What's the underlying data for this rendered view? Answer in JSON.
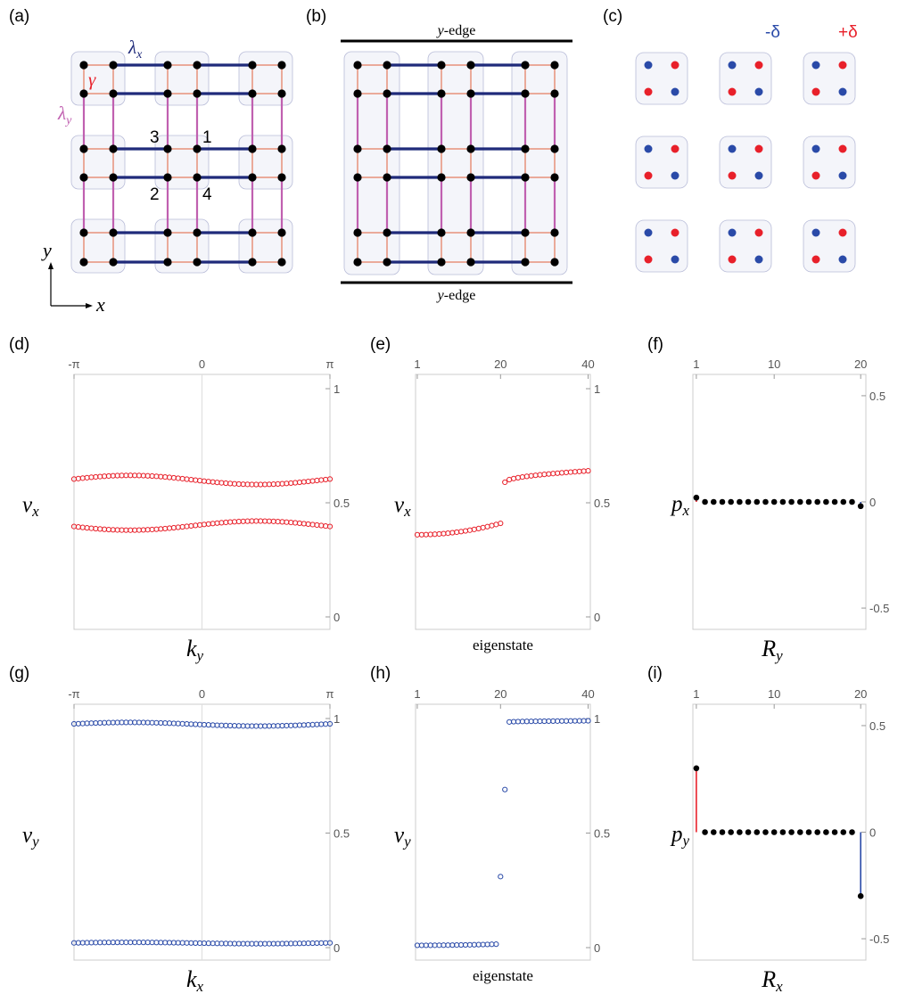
{
  "labels": {
    "a": "(a)",
    "b": "(b)",
    "c": "(c)",
    "d": "(d)",
    "e": "(e)",
    "f": "(f)",
    "g": "(g)",
    "h": "(h)",
    "i": "(i)"
  },
  "panel_a": {
    "lambda_x": "λ",
    "lambda_x_sub": "x",
    "lambda_y": "λ",
    "lambda_y_sub": "y",
    "gamma": "γ",
    "site_labels": [
      "3",
      "1",
      "2",
      "4"
    ],
    "axis_x": "x",
    "axis_y": "y"
  },
  "panel_b": {
    "top_edge": "y",
    "top_edge_rest": "-edge",
    "bottom_edge": "y",
    "bottom_edge_rest": "-edge"
  },
  "panel_c": {
    "minus_label": "-δ",
    "plus_label": "+δ"
  },
  "colors": {
    "lambda_x": "#1f2a7a",
    "lambda_y": "#c060b0",
    "gamma": "#e0603a",
    "red": "#e8202a",
    "blue": "#2a4aa8",
    "cell_fill": "#f4f5fa",
    "cell_border": "#b8bcd8"
  },
  "chart_data": [
    {
      "id": "d",
      "type": "scatter",
      "marker": "open-circle",
      "color": "red",
      "top_ticks": [
        "-π",
        "0",
        "π"
      ],
      "right_ticks": [
        "1",
        "0.5",
        "0"
      ],
      "ylim": [
        0,
        1
      ],
      "ylabel": "v",
      "ylabel_sub": "x",
      "xlabel": "k",
      "xlabel_sub": "y",
      "series": [
        {
          "x_range": [
            -3.1416,
            3.1416
          ],
          "n": 60,
          "baseline": 0.6,
          "wave": [
            0.02,
            0.0,
            0.03
          ]
        },
        {
          "x_range": [
            -3.1416,
            3.1416
          ],
          "n": 60,
          "baseline": 0.4,
          "wave": [
            -0.02,
            0.0,
            -0.02
          ]
        }
      ]
    },
    {
      "id": "e",
      "type": "scatter",
      "marker": "open-circle",
      "color": "red",
      "top_ticks": [
        "1",
        "20",
        "40"
      ],
      "right_ticks": [
        "1",
        "0.5",
        "0"
      ],
      "ylim": [
        0,
        1
      ],
      "ylabel": "v",
      "ylabel_sub": "x",
      "xlabel": "eigenstate",
      "lower": {
        "x_from": 1,
        "x_to": 20,
        "y_from": 0.36,
        "y_to": 0.41
      },
      "upper": {
        "x_from": 21,
        "x_to": 40,
        "y_from": 0.59,
        "y_to": 0.64
      }
    },
    {
      "id": "f",
      "type": "stem",
      "top_ticks": [
        "1",
        "10",
        "20"
      ],
      "right_ticks": [
        "0.5",
        "0",
        "-0.5"
      ],
      "ylim": [
        -0.55,
        0.55
      ],
      "ylabel": "p",
      "ylabel_sub": "x",
      "xlabel": "R",
      "xlabel_sub": "y",
      "x": [
        1,
        2,
        3,
        4,
        5,
        6,
        7,
        8,
        9,
        10,
        11,
        12,
        13,
        14,
        15,
        16,
        17,
        18,
        19,
        20
      ],
      "y": [
        0.02,
        0,
        0,
        0,
        0,
        0,
        0,
        0,
        0,
        0,
        0,
        0,
        0,
        0,
        0,
        0,
        0,
        0,
        0,
        -0.02
      ]
    },
    {
      "id": "g",
      "type": "scatter",
      "marker": "open-circle",
      "color": "blue",
      "top_ticks": [
        "-π",
        "0",
        "π"
      ],
      "right_ticks": [
        "1",
        "0.5",
        "0"
      ],
      "ylim": [
        0,
        1
      ],
      "ylabel": "v",
      "ylabel_sub": "y",
      "xlabel": "k",
      "xlabel_sub": "x",
      "series": [
        {
          "x_range": [
            -3.1416,
            3.1416
          ],
          "n": 60,
          "baseline": 0.975,
          "wave": [
            0.008,
            0.0,
            -0.004
          ]
        },
        {
          "x_range": [
            -3.1416,
            3.1416
          ],
          "n": 60,
          "baseline": 0.02,
          "wave": [
            0.003,
            0.0,
            0.006
          ]
        }
      ]
    },
    {
      "id": "h",
      "type": "scatter",
      "marker": "open-circle",
      "color": "blue",
      "top_ticks": [
        "1",
        "20",
        "40"
      ],
      "right_ticks": [
        "1",
        "0.5",
        "0"
      ],
      "ylim": [
        0,
        1
      ],
      "ylabel": "v",
      "ylabel_sub": "y",
      "xlabel": "eigenstate",
      "lower": {
        "x_from": 1,
        "x_to": 19,
        "y_from": 0.01,
        "y_to": 0.015
      },
      "mid": [
        {
          "x": 20,
          "y": 0.31
        },
        {
          "x": 21,
          "y": 0.69
        }
      ],
      "upper": {
        "x_from": 22,
        "x_to": 40,
        "y_from": 0.985,
        "y_to": 0.99
      }
    },
    {
      "id": "i",
      "type": "stem",
      "top_ticks": [
        "1",
        "10",
        "20"
      ],
      "right_ticks": [
        "0.5",
        "0",
        "-0.5"
      ],
      "ylim": [
        -0.55,
        0.55
      ],
      "ylabel": "p",
      "ylabel_sub": "y",
      "xlabel": "R",
      "xlabel_sub": "x",
      "x": [
        1,
        2,
        3,
        4,
        5,
        6,
        7,
        8,
        9,
        10,
        11,
        12,
        13,
        14,
        15,
        16,
        17,
        18,
        19,
        20
      ],
      "y": [
        0.3,
        0,
        0,
        0,
        0,
        0,
        0,
        0,
        0,
        0,
        0,
        0,
        0,
        0,
        0,
        0,
        0,
        0,
        0,
        -0.3
      ]
    }
  ]
}
